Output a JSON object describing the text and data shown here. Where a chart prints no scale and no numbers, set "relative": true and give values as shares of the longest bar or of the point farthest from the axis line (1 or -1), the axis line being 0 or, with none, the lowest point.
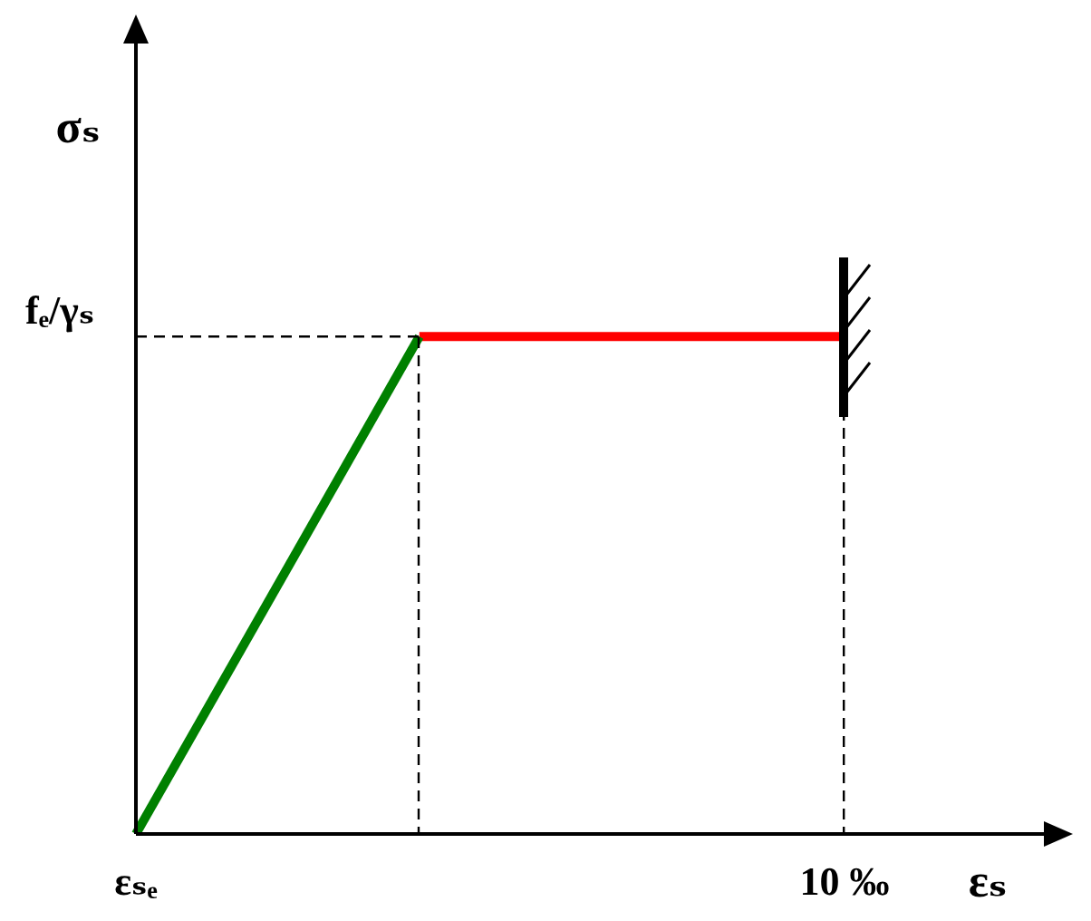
{
  "chart_data": {
    "type": "line",
    "relative": true,
    "xlabel": "εₛ",
    "ylabel": "σₛ",
    "categories": [
      "εₛₑ",
      null,
      null,
      null,
      null,
      "10 ‰"
    ],
    "series": [
      {
        "color": "#008000",
        "values": [
          0,
          null,
          1,
          null,
          null,
          null
        ]
      },
      {
        "color": "#ff0000",
        "values": [
          null,
          null,
          1,
          1,
          1,
          1
        ]
      }
    ],
    "ref_lines": [
      {
        "axis": "y",
        "value": 1,
        "label": "fₑ/γₛ",
        "line_style": "dashed"
      }
    ],
    "legend": false,
    "marker": "none",
    "line_style": "solid"
  }
}
